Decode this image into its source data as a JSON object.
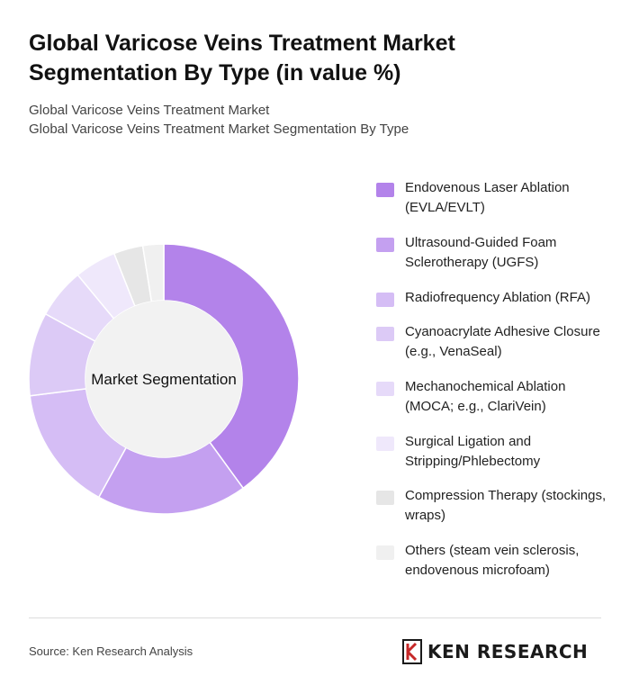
{
  "title": "Global Varicose Veins Treatment Market Segmentation By Type (in value %)",
  "subtitle_1": "Global Varicose Veins Treatment Market",
  "subtitle_2": "Global Varicose Veins Treatment Market Segmentation By Type",
  "source": "Source: Ken Research Analysis",
  "logo_text": "KEN RESEARCH",
  "chart_data": {
    "type": "pie",
    "center_label": "Market Segmentation",
    "categories": [
      "Endovenous Laser Ablation (EVLA/EVLT)",
      "Ultrasound-Guided Foam Sclerotherapy (UGFS)",
      "Radiofrequency Ablation (RFA)",
      "Cyanoacrylate Adhesive Closure (e.g., VenaSeal)",
      "Mechanochemical Ablation (MOCA; e.g., ClariVein)",
      "Surgical Ligation and Stripping/Phlebectomy",
      "Compression Therapy (stockings, wraps)",
      "Others (steam vein sclerosis, endovenous microfoam)"
    ],
    "values": [
      40,
      18,
      15,
      10,
      6,
      5,
      3.5,
      2.5
    ],
    "colors": [
      "#b383ea",
      "#c4a0f0",
      "#d5bdf5",
      "#dccaf6",
      "#e6daf9",
      "#efe8fb",
      "#e6e6e6",
      "#f0f0f0"
    ],
    "center_color": "#f2f2f2"
  }
}
